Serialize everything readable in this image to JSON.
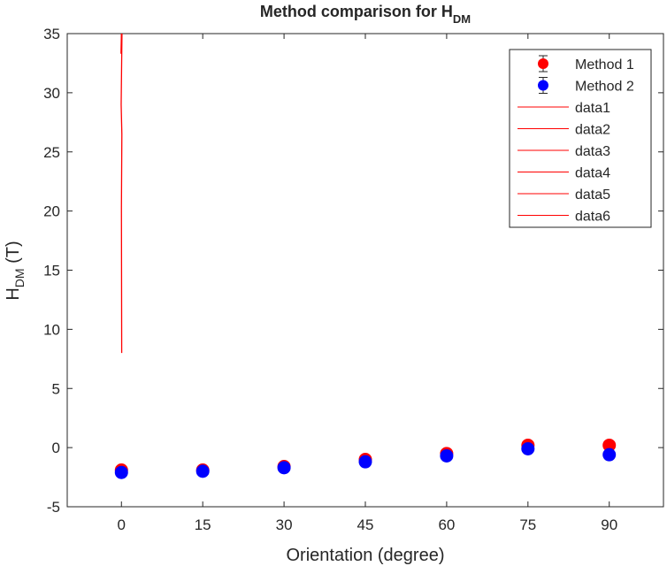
{
  "chart_data": {
    "type": "scatter",
    "title": "Method comparison for H",
    "title_subscript": "DM",
    "xlabel": "Orientation (degree)",
    "ylabel": "H",
    "ylabel_subscript": "DM",
    "ylabel_suffix": " (T)",
    "xlim": [
      -10,
      100
    ],
    "ylim": [
      -5,
      35
    ],
    "xticks": [
      0,
      15,
      30,
      45,
      60,
      75,
      90
    ],
    "yticks": [
      -5,
      0,
      5,
      10,
      15,
      20,
      25,
      30,
      35
    ],
    "grid": false,
    "legend_position": "top-right",
    "series": [
      {
        "name": "Method 1",
        "kind": "errorbar-marker",
        "color": "#ff0000",
        "x": [
          0,
          15,
          30,
          45,
          60,
          75,
          90
        ],
        "y": [
          -1.9,
          -1.9,
          -1.6,
          -1.0,
          -0.5,
          0.2,
          0.2
        ]
      },
      {
        "name": "Method 2",
        "kind": "errorbar-marker",
        "color": "#0000ff",
        "x": [
          0,
          15,
          30,
          45,
          60,
          75,
          90
        ],
        "y": [
          -2.1,
          -2.0,
          -1.7,
          -1.2,
          -0.7,
          -0.1,
          -0.6
        ]
      },
      {
        "name": "data1",
        "kind": "line",
        "color": "#ff0000",
        "x": [
          0,
          -0.08,
          0.1,
          -0.05,
          0.08,
          0,
          0.05
        ],
        "y": [
          35,
          33.3,
          35,
          29,
          26.5,
          20.3,
          8
        ]
      },
      {
        "name": "data2",
        "kind": "line",
        "color": "#ff0000",
        "x": [],
        "y": []
      },
      {
        "name": "data3",
        "kind": "line",
        "color": "#ff0000",
        "x": [],
        "y": []
      },
      {
        "name": "data4",
        "kind": "line",
        "color": "#ff0000",
        "x": [],
        "y": []
      },
      {
        "name": "data5",
        "kind": "line",
        "color": "#ff0000",
        "x": [],
        "y": []
      },
      {
        "name": "data6",
        "kind": "line",
        "color": "#ff0000",
        "x": [],
        "y": []
      }
    ]
  }
}
